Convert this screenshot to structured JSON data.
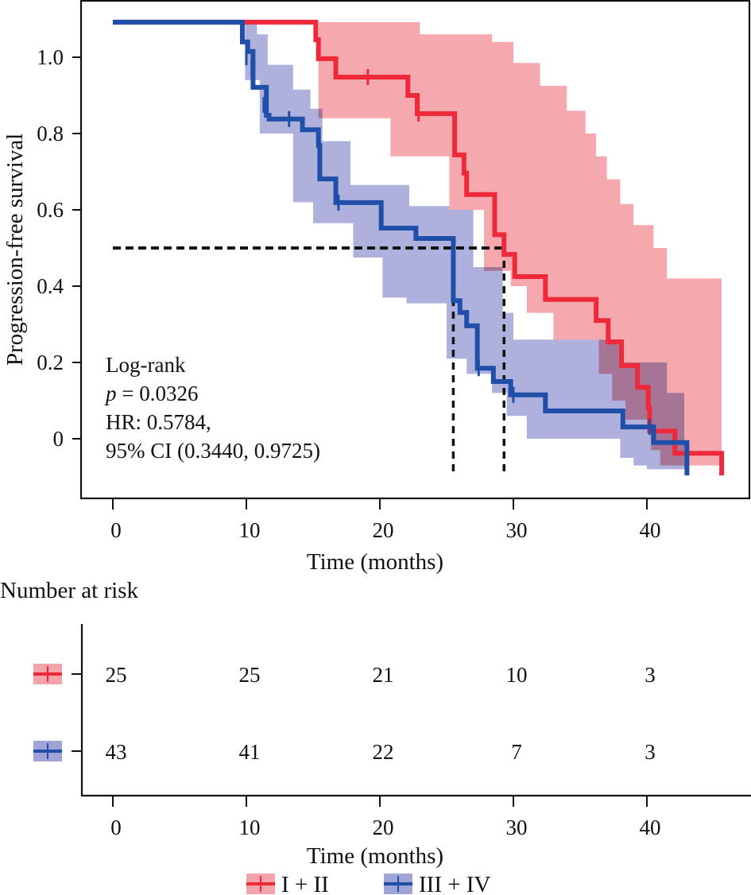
{
  "chart_data": {
    "type": "line",
    "subtype": "kaplan-meier",
    "title": "",
    "xlabel": "Time (months)",
    "ylabel": "Progression-free survival",
    "xlim": [
      -2.4,
      47.7
    ],
    "ylim": [
      -0.16,
      1.15
    ],
    "x_ticks": [
      0,
      10,
      20,
      30,
      40
    ],
    "x_tick_labels": [
      "0",
      "10",
      "20",
      "30",
      "40"
    ],
    "y_ticks": [
      0,
      0.2,
      0.4,
      0.6,
      0.8,
      1.0
    ],
    "y_tick_labels": [
      "0",
      "0.2",
      "0.4",
      "0.6",
      "0.8",
      "1.0"
    ],
    "grid": false,
    "legend_position": "bottom-center",
    "series": [
      {
        "name": "I + II",
        "line_color": "#ee2a3a",
        "band_color": "#f4a3aa",
        "steps": [
          [
            0,
            1.092
          ],
          [
            15.2,
            1.046
          ],
          [
            15.4,
            0.996
          ],
          [
            16.7,
            0.948
          ],
          [
            22.1,
            0.9
          ],
          [
            22.8,
            0.852
          ],
          [
            25.6,
            0.744
          ],
          [
            26.3,
            0.696
          ],
          [
            26.5,
            0.64
          ],
          [
            28.6,
            0.535
          ],
          [
            29.3,
            0.483
          ],
          [
            30.1,
            0.425
          ],
          [
            32.4,
            0.365
          ],
          [
            36.2,
            0.31
          ],
          [
            37.1,
            0.254
          ],
          [
            38.1,
            0.192
          ],
          [
            39.3,
            0.135
          ],
          [
            40.1,
            0.081
          ],
          [
            40.2,
            0.02
          ],
          [
            42.1,
            -0.038
          ],
          [
            45.6,
            -0.038
          ]
        ],
        "end_drop": -0.096,
        "censor_marks": [
          [
            19.1,
            0.948
          ],
          [
            22.9,
            0.852
          ]
        ],
        "ci_upper": [
          [
            15.4,
            1.092
          ],
          [
            23.0,
            1.092
          ],
          [
            23.0,
            1.06
          ],
          [
            28.4,
            1.06
          ],
          [
            28.4,
            1.04
          ],
          [
            30.0,
            1.04
          ],
          [
            30.0,
            0.985
          ],
          [
            32.0,
            0.985
          ],
          [
            32.0,
            0.925
          ],
          [
            34.0,
            0.925
          ],
          [
            34.0,
            0.86
          ],
          [
            35.4,
            0.86
          ],
          [
            35.4,
            0.8
          ],
          [
            36.2,
            0.8
          ],
          [
            36.2,
            0.74
          ],
          [
            37.0,
            0.74
          ],
          [
            37.0,
            0.68
          ],
          [
            38.0,
            0.68
          ],
          [
            38.0,
            0.615
          ],
          [
            39.0,
            0.615
          ],
          [
            39.0,
            0.56
          ],
          [
            40.5,
            0.56
          ],
          [
            40.5,
            0.5
          ],
          [
            41.5,
            0.5
          ],
          [
            41.5,
            0.42
          ],
          [
            45.6,
            0.42
          ]
        ],
        "ci_lower": [
          [
            15.4,
            0.84
          ],
          [
            20.8,
            0.84
          ],
          [
            20.8,
            0.74
          ],
          [
            25.2,
            0.74
          ],
          [
            25.2,
            0.6
          ],
          [
            27.8,
            0.6
          ],
          [
            27.8,
            0.44
          ],
          [
            29.8,
            0.44
          ],
          [
            29.8,
            0.4
          ],
          [
            31.0,
            0.4
          ],
          [
            31.0,
            0.33
          ],
          [
            33.0,
            0.33
          ],
          [
            33.0,
            0.26
          ],
          [
            36.4,
            0.26
          ],
          [
            36.4,
            0.17
          ],
          [
            37.4,
            0.17
          ],
          [
            37.4,
            0.1
          ],
          [
            38.4,
            0.1
          ],
          [
            38.4,
            0.05
          ],
          [
            40.3,
            0.05
          ],
          [
            40.3,
            -0.03
          ],
          [
            41.0,
            -0.03
          ],
          [
            41.0,
            -0.07
          ],
          [
            45.6,
            -0.07
          ]
        ]
      },
      {
        "name": "III + IV",
        "line_color": "#1f4fa8",
        "band_color": "#9fa3d6",
        "steps": [
          [
            0,
            1.092
          ],
          [
            9.7,
            1.04
          ],
          [
            10.1,
            1.015
          ],
          [
            10.5,
            0.921
          ],
          [
            11.5,
            0.848
          ],
          [
            11.7,
            0.838
          ],
          [
            14.2,
            0.81
          ],
          [
            15.4,
            0.769
          ],
          [
            15.5,
            0.681
          ],
          [
            16.7,
            0.619
          ],
          [
            20.1,
            0.552
          ],
          [
            22.7,
            0.525
          ],
          [
            25.5,
            0.362
          ],
          [
            26.0,
            0.331
          ],
          [
            26.5,
            0.296
          ],
          [
            27.3,
            0.185
          ],
          [
            28.5,
            0.15
          ],
          [
            29.8,
            0.115
          ],
          [
            32.4,
            0.073
          ],
          [
            38.2,
            0.031
          ],
          [
            40.5,
            -0.01
          ],
          [
            43.0,
            -0.01
          ]
        ],
        "end_drop": -0.096,
        "censor_marks": [
          [
            10.0,
            1.0
          ],
          [
            10.4,
            0.97
          ],
          [
            11.3,
            0.875
          ],
          [
            13.2,
            0.838
          ],
          [
            16.9,
            0.619
          ],
          [
            27.4,
            0.185
          ],
          [
            30.0,
            0.115
          ],
          [
            40.2,
            0.031
          ]
        ],
        "ci_upper": [
          [
            9.9,
            1.092
          ],
          [
            10.8,
            1.092
          ],
          [
            10.8,
            1.06
          ],
          [
            11.6,
            1.06
          ],
          [
            11.6,
            0.98
          ],
          [
            13.5,
            0.98
          ],
          [
            13.5,
            0.915
          ],
          [
            14.8,
            0.915
          ],
          [
            14.8,
            0.865
          ],
          [
            15.7,
            0.865
          ],
          [
            15.7,
            0.78
          ],
          [
            17.8,
            0.78
          ],
          [
            17.8,
            0.665
          ],
          [
            22.2,
            0.665
          ],
          [
            22.2,
            0.61
          ],
          [
            25.2,
            0.61
          ],
          [
            25.2,
            0.6
          ],
          [
            27.0,
            0.6
          ],
          [
            27.0,
            0.45
          ],
          [
            29.2,
            0.45
          ],
          [
            29.2,
            0.33
          ],
          [
            30.0,
            0.33
          ],
          [
            30.0,
            0.26
          ],
          [
            38.2,
            0.26
          ],
          [
            38.2,
            0.2
          ],
          [
            41.5,
            0.2
          ],
          [
            41.5,
            0.12
          ],
          [
            42.8,
            0.12
          ],
          [
            42.8,
            -0.01
          ],
          [
            43.0,
            -0.01
          ]
        ],
        "ci_lower": [
          [
            9.9,
            0.94
          ],
          [
            11.0,
            0.94
          ],
          [
            11.0,
            0.8
          ],
          [
            13.5,
            0.8
          ],
          [
            13.5,
            0.62
          ],
          [
            15.0,
            0.62
          ],
          [
            15.0,
            0.565
          ],
          [
            18.0,
            0.565
          ],
          [
            18.0,
            0.475
          ],
          [
            20.2,
            0.475
          ],
          [
            20.2,
            0.37
          ],
          [
            22.0,
            0.37
          ],
          [
            22.0,
            0.355
          ],
          [
            25.0,
            0.355
          ],
          [
            25.0,
            0.21
          ],
          [
            26.5,
            0.21
          ],
          [
            26.5,
            0.17
          ],
          [
            28.4,
            0.17
          ],
          [
            28.4,
            0.12
          ],
          [
            29.5,
            0.12
          ],
          [
            29.5,
            0.06
          ],
          [
            31.0,
            0.06
          ],
          [
            31.0,
            0.0
          ],
          [
            38.0,
            0.0
          ],
          [
            38.0,
            -0.05
          ],
          [
            39.0,
            -0.05
          ],
          [
            39.0,
            -0.07
          ],
          [
            40.0,
            -0.07
          ],
          [
            40.0,
            -0.08
          ],
          [
            43.0,
            -0.08
          ]
        ]
      }
    ],
    "median_line": {
      "y": 0.5,
      "x_values": [
        25.5,
        29.3
      ],
      "y_drawn": 0.5
    },
    "annotation": {
      "line1": "Log-rank",
      "p_symbol": "p",
      "p_rest": " = 0.0326",
      "line3": "HR: 0.5784,",
      "line4": "95% CI (0.3440, 0.9725)"
    },
    "risk_table": {
      "title": "Number at risk",
      "xlabel": "Time (months)",
      "times": [
        0,
        10,
        20,
        30,
        40
      ],
      "time_labels": [
        "0",
        "10",
        "20",
        "30",
        "40"
      ],
      "rows": [
        {
          "group": "I + II",
          "values": [
            "25",
            "25",
            "21",
            "10",
            "3"
          ]
        },
        {
          "group": "III + IV",
          "values": [
            "43",
            "41",
            "22",
            "7",
            "3"
          ]
        }
      ]
    },
    "legend": [
      {
        "label": "I + II",
        "line_color": "#ee2a3a",
        "band_color": "#f4a3aa"
      },
      {
        "label": "III + IV",
        "line_color": "#1f4fa8",
        "band_color": "#9fa3d6"
      }
    ]
  }
}
